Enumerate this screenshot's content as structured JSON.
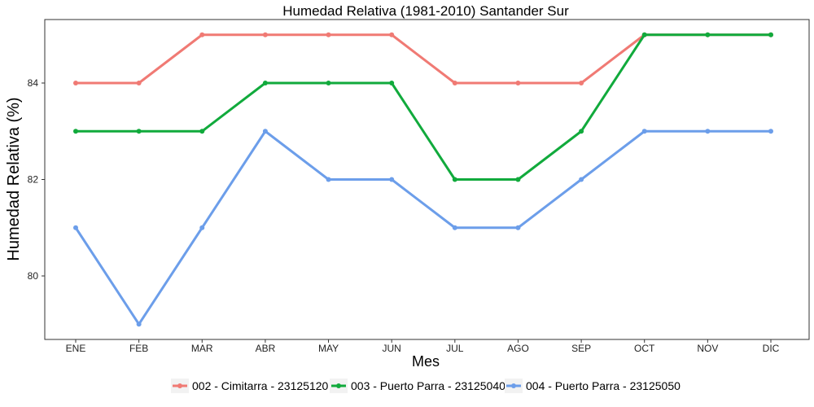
{
  "chart_data": {
    "type": "line",
    "title": "Humedad Relativa (1981-2010)  Santander Sur",
    "xlabel": "Mes",
    "ylabel": "Humedad Relativa  (%)",
    "categories": [
      "ENE",
      "FEB",
      "MAR",
      "ABR",
      "MAY",
      "JUN",
      "JUL",
      "AGO",
      "SEP",
      "OCT",
      "NOV",
      "DIC"
    ],
    "yticks": [
      80,
      82,
      84
    ],
    "ylim": [
      79,
      85
    ],
    "grid": false,
    "legend_position": "bottom",
    "series": [
      {
        "name": "002 - Cimitarra - 23125120",
        "color": "#f07a74",
        "values": [
          84,
          84,
          85,
          85,
          85,
          85,
          84,
          84,
          84,
          85,
          85,
          85
        ]
      },
      {
        "name": "003 - Puerto Parra - 23125040",
        "color": "#11aa3c",
        "values": [
          83,
          83,
          83,
          84,
          84,
          84,
          82,
          82,
          83,
          85,
          85,
          85
        ]
      },
      {
        "name": "004 - Puerto Parra - 23125050",
        "color": "#6c9eea",
        "values": [
          81,
          79,
          81,
          83,
          82,
          82,
          81,
          81,
          82,
          83,
          83,
          83
        ]
      }
    ]
  }
}
